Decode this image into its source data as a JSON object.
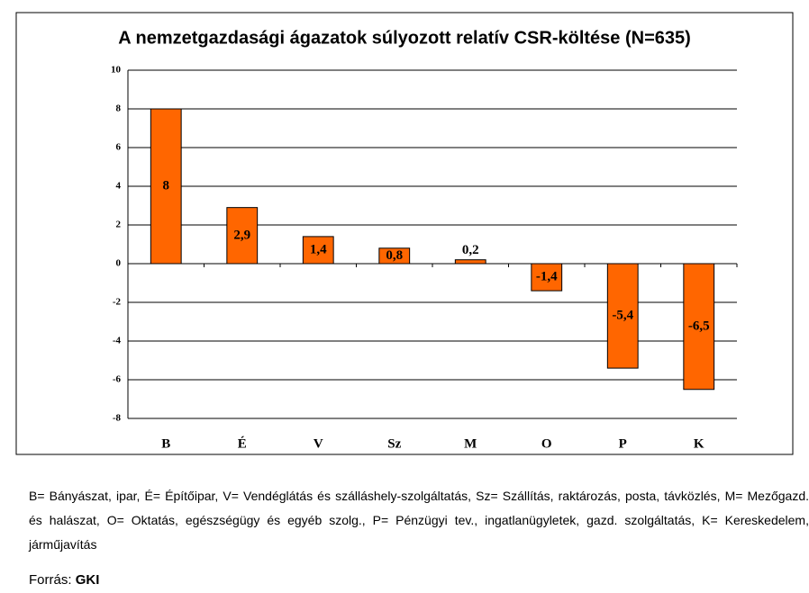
{
  "chart_data": {
    "type": "bar",
    "title": "A nemzetgazdasági ágazatok súlyozott relatív CSR-költése (N=635)",
    "categories": [
      "B",
      "É",
      "V",
      "Sz",
      "M",
      "O",
      "P",
      "K"
    ],
    "values": [
      8,
      2.9,
      1.4,
      0.8,
      0.2,
      -1.4,
      -5.4,
      -6.5
    ],
    "value_labels": [
      "8",
      "2,9",
      "1,4",
      "0,8",
      "0,2",
      "-1,4",
      "-5,4",
      "-6,5"
    ],
    "color": "#ff6600",
    "ylim": [
      -8,
      10
    ],
    "yticks": [
      -8,
      -6,
      -4,
      -2,
      0,
      2,
      4,
      6,
      8,
      10
    ],
    "grid": true
  },
  "note": "B= Bányászat, ipar, É= Építőipar, V= Vendéglátás és szálláshely-szolgáltatás, Sz= Szállítás, raktározás, posta, távközlés, M= Mezőgazd. és halászat, O= Oktatás, egészségügy és egyéb szolg., P= Pénzügyi tev., ingatlanügyletek, gazd. szolgáltatás, K= Kereskedelem, járműjavítás",
  "source_label": "Forrás:",
  "source": "GKI"
}
